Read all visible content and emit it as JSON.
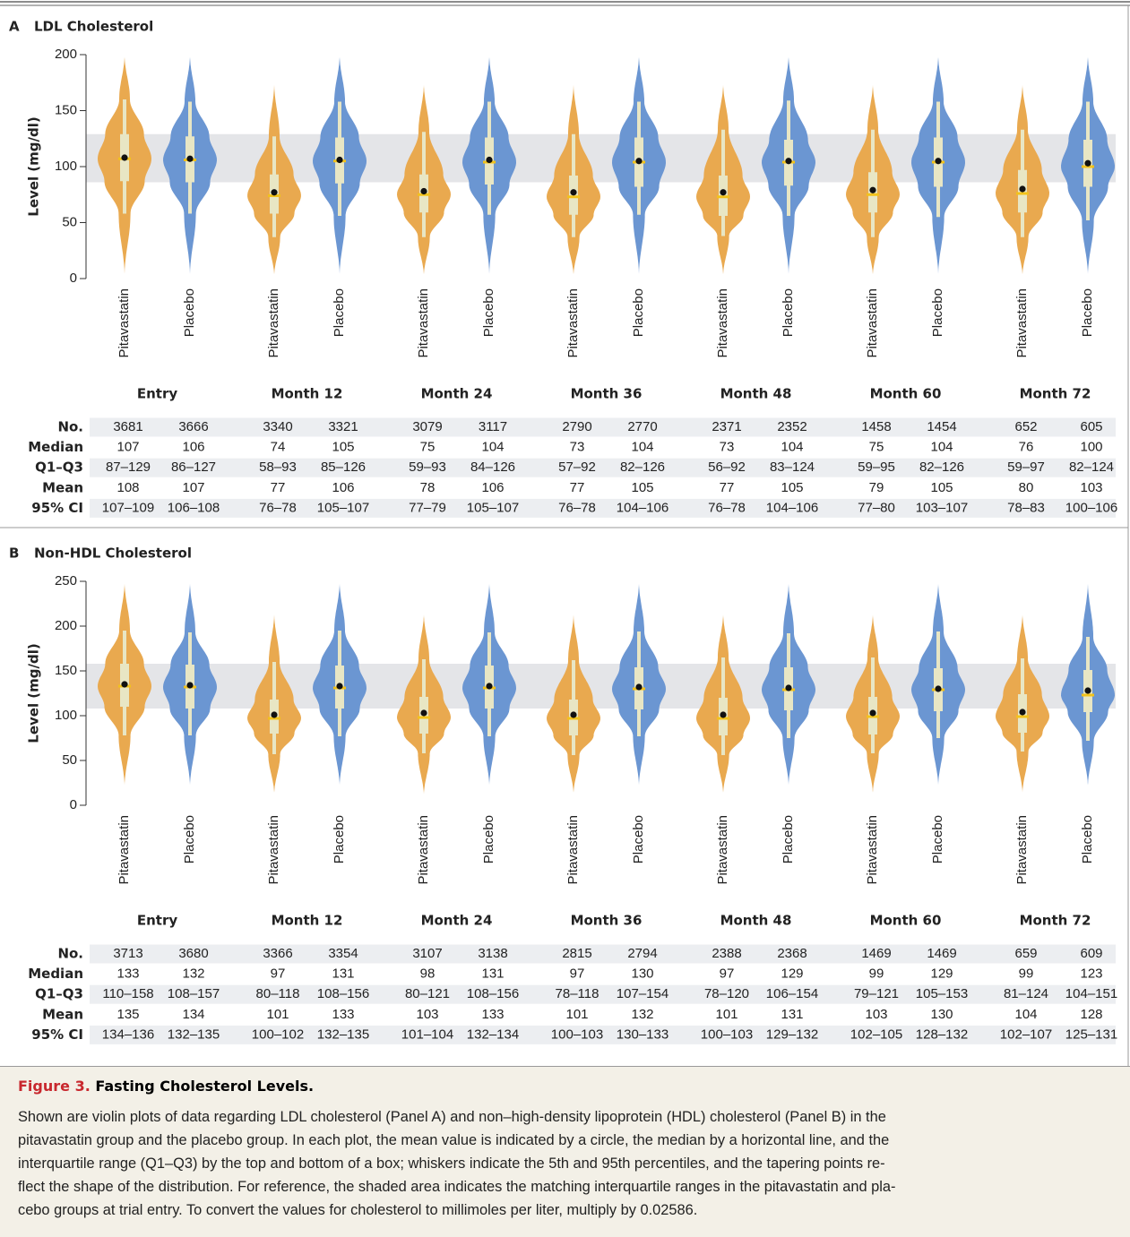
{
  "chart_data": [
    {
      "type": "violin",
      "panel": "A",
      "title": "LDL Cholesterol",
      "ylabel": "Level (mg/dl)",
      "ylim": [
        0,
        200
      ],
      "yticks": [
        0,
        50,
        100,
        150,
        200
      ],
      "reference_band": [
        86,
        129
      ],
      "categories": [
        "Entry",
        "Month 12",
        "Month 24",
        "Month 36",
        "Month 48",
        "Month 60",
        "Month 72"
      ],
      "table_rows": [
        "No.",
        "Median",
        "Q1–Q3",
        "Mean",
        "95% CI"
      ],
      "series": [
        {
          "name": "Pitavastatin",
          "color": "#e9a94f",
          "n": [
            3681,
            3340,
            3079,
            2790,
            2371,
            1458,
            652
          ],
          "median": [
            107,
            74,
            75,
            73,
            73,
            75,
            76
          ],
          "q1": [
            87,
            58,
            59,
            57,
            56,
            59,
            59
          ],
          "q3": [
            129,
            93,
            93,
            92,
            92,
            95,
            97
          ],
          "q1q3_labels": [
            "87–129",
            "58–93",
            "59–93",
            "57–92",
            "56–92",
            "59–95",
            "59–97"
          ],
          "mean": [
            108,
            77,
            78,
            77,
            77,
            79,
            80
          ],
          "ci": [
            "107–109",
            "76–78",
            "77–79",
            "76–78",
            "76–78",
            "77–80",
            "78–83"
          ],
          "p5": [
            58,
            37,
            37,
            37,
            38,
            37,
            37
          ],
          "p95": [
            160,
            127,
            131,
            129,
            133,
            133,
            133
          ],
          "min": [
            2,
            2,
            2,
            2,
            2,
            2,
            2
          ],
          "max": [
            200,
            175,
            175,
            175,
            175,
            175,
            175
          ]
        },
        {
          "name": "Placebo",
          "color": "#6b96d2",
          "n": [
            3666,
            3321,
            3117,
            2770,
            2352,
            1454,
            605
          ],
          "median": [
            106,
            105,
            104,
            104,
            104,
            104,
            100
          ],
          "q1": [
            86,
            85,
            84,
            82,
            83,
            82,
            82
          ],
          "q3": [
            127,
            126,
            126,
            126,
            124,
            126,
            124
          ],
          "q1q3_labels": [
            "86–127",
            "85–126",
            "84–126",
            "82–126",
            "83–124",
            "82–126",
            "82–124"
          ],
          "mean": [
            107,
            106,
            106,
            105,
            105,
            105,
            103
          ],
          "ci": [
            "106–108",
            "105–107",
            "105–107",
            "104–106",
            "104–106",
            "103–107",
            "100–106"
          ],
          "p5": [
            58,
            56,
            57,
            57,
            56,
            55,
            52
          ],
          "p95": [
            158,
            158,
            158,
            158,
            159,
            158,
            158
          ],
          "min": [
            2,
            2,
            2,
            2,
            2,
            2,
            2
          ],
          "max": [
            200,
            200,
            200,
            200,
            200,
            200,
            200
          ]
        }
      ]
    },
    {
      "type": "violin",
      "panel": "B",
      "title": "Non-HDL Cholesterol",
      "ylabel": "Level (mg/dl)",
      "ylim": [
        0,
        250
      ],
      "yticks": [
        0,
        50,
        100,
        150,
        200,
        250
      ],
      "reference_band": [
        108,
        158
      ],
      "categories": [
        "Entry",
        "Month 12",
        "Month 24",
        "Month 36",
        "Month 48",
        "Month 60",
        "Month 72"
      ],
      "table_rows": [
        "No.",
        "Median",
        "Q1–Q3",
        "Mean",
        "95% CI"
      ],
      "series": [
        {
          "name": "Pitavastatin",
          "color": "#e9a94f",
          "n": [
            3713,
            3366,
            3107,
            2815,
            2388,
            1469,
            659
          ],
          "median": [
            133,
            97,
            98,
            97,
            97,
            99,
            99
          ],
          "q1": [
            110,
            80,
            80,
            78,
            78,
            79,
            81
          ],
          "q3": [
            158,
            118,
            121,
            118,
            120,
            121,
            124
          ],
          "q1q3_labels": [
            "110–158",
            "80–118",
            "80–121",
            "78–118",
            "78–120",
            "79–121",
            "81–124"
          ],
          "mean": [
            135,
            101,
            103,
            101,
            101,
            103,
            104
          ],
          "ci": [
            "134–136",
            "100–102",
            "101–104",
            "100–103",
            "100–103",
            "102–105",
            "102–107"
          ],
          "p5": [
            78,
            57,
            58,
            56,
            56,
            58,
            60
          ],
          "p95": [
            195,
            160,
            163,
            162,
            165,
            165,
            164
          ],
          "min": [
            20,
            12,
            10,
            12,
            12,
            12,
            12
          ],
          "max": [
            250,
            215,
            215,
            215,
            215,
            215,
            215
          ]
        },
        {
          "name": "Placebo",
          "color": "#6b96d2",
          "n": [
            3680,
            3354,
            3138,
            2794,
            2368,
            1469,
            609
          ],
          "median": [
            132,
            131,
            131,
            130,
            129,
            129,
            123
          ],
          "q1": [
            108,
            108,
            108,
            107,
            106,
            105,
            104
          ],
          "q3": [
            157,
            156,
            156,
            154,
            154,
            153,
            151
          ],
          "q1q3_labels": [
            "108–157",
            "108–156",
            "108–156",
            "107–154",
            "106–154",
            "105–153",
            "104–151"
          ],
          "mean": [
            134,
            133,
            133,
            132,
            131,
            130,
            128
          ],
          "ci": [
            "132–135",
            "132–135",
            "132–134",
            "130–133",
            "129–132",
            "128–132",
            "125–131"
          ],
          "p5": [
            78,
            77,
            77,
            77,
            75,
            75,
            72
          ],
          "p95": [
            193,
            195,
            193,
            194,
            192,
            194,
            188
          ],
          "min": [
            20,
            20,
            20,
            20,
            20,
            20,
            20
          ],
          "max": [
            250,
            250,
            250,
            250,
            250,
            250,
            250
          ]
        }
      ]
    }
  ],
  "caption": {
    "label": "Figure 3.",
    "title": "Fasting Cholesterol Levels.",
    "lines": [
      "Shown are violin plots of data regarding LDL cholesterol (Panel A) and non–high-density lipoprotein (HDL) cholesterol (Panel B) in the",
      "pitavastatin group and the placebo group. In each plot, the mean value is indicated by a circle, the median by a horizontal line, and the",
      "interquartile range (Q1–Q3) by the top and bottom of a box; whiskers indicate the 5th and 95th percentiles, and the tapering points re-",
      "flect the shape of the distribution. For reference, the shaded area indicates the matching interquartile ranges in the pitavastatin and pla-",
      "cebo groups at trial entry. To convert the values for cholesterol to millimoles per liter, multiply by 0.02586."
    ]
  }
}
